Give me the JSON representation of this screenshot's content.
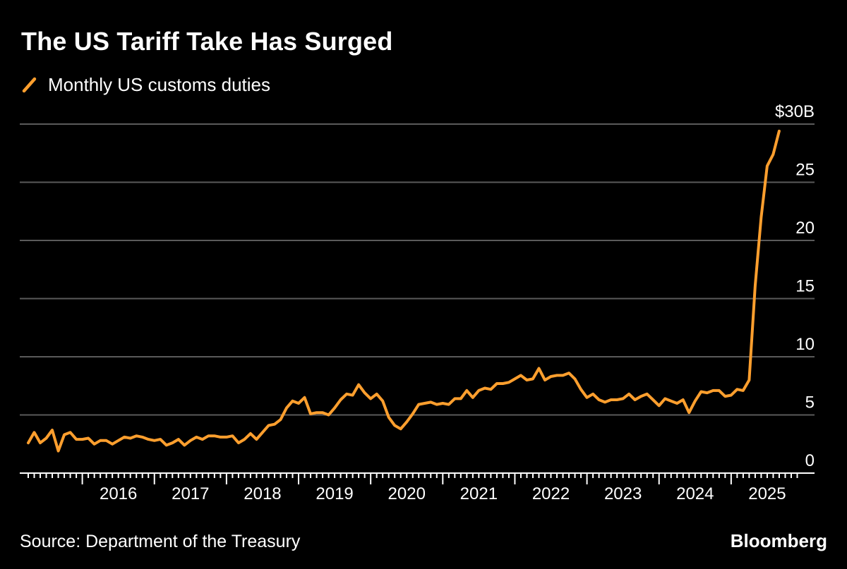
{
  "title": "The US Tariff Take Has Surged",
  "source": "Source: Department of the Treasury",
  "brand": "Bloomberg",
  "colors": {
    "series": "#FF9F2E",
    "grid": "#5a5a5a",
    "axis": "#ffffff",
    "background": "#000000"
  },
  "chart_data": {
    "type": "line",
    "title": "The US Tariff Take Has Surged",
    "xlabel": "",
    "ylabel": "",
    "ylim": [
      0,
      30
    ],
    "xlim": [
      2015.25,
      2026.0
    ],
    "yticks": [
      0,
      5,
      10,
      15,
      20,
      25,
      30
    ],
    "ytick_labels": [
      "0",
      "5",
      "10",
      "15",
      "20",
      "25",
      "$30B"
    ],
    "xticks": [
      2016,
      2017,
      2018,
      2019,
      2020,
      2021,
      2022,
      2023,
      2024,
      2025
    ],
    "xtick_labels": [
      "2016",
      "2017",
      "2018",
      "2019",
      "2020",
      "2021",
      "2022",
      "2023",
      "2024",
      "2025"
    ],
    "grid": true,
    "legend_position": "top-left",
    "series": [
      {
        "name": "Monthly US customs duties",
        "x_start": 2015.25,
        "step": 0.08333,
        "values": [
          2.6,
          3.5,
          2.6,
          3.0,
          3.7,
          1.9,
          3.3,
          3.5,
          2.9,
          2.9,
          3.0,
          2.5,
          2.8,
          2.8,
          2.5,
          2.8,
          3.1,
          3.0,
          3.2,
          3.1,
          2.9,
          2.8,
          2.9,
          2.4,
          2.6,
          2.9,
          2.4,
          2.8,
          3.1,
          2.9,
          3.2,
          3.2,
          3.1,
          3.1,
          3.2,
          2.6,
          2.9,
          3.4,
          2.9,
          3.5,
          4.1,
          4.2,
          4.6,
          5.6,
          6.2,
          6.0,
          6.5,
          5.1,
          5.2,
          5.2,
          5.0,
          5.6,
          6.3,
          6.8,
          6.7,
          7.6,
          6.9,
          6.4,
          6.8,
          6.2,
          4.8,
          4.1,
          3.8,
          4.4,
          5.1,
          5.9,
          6.0,
          6.1,
          5.9,
          6.0,
          5.9,
          6.4,
          6.4,
          7.1,
          6.5,
          7.1,
          7.3,
          7.2,
          7.7,
          7.7,
          7.8,
          8.1,
          8.4,
          8.0,
          8.1,
          9.0,
          8.0,
          8.3,
          8.4,
          8.4,
          8.6,
          8.1,
          7.2,
          6.5,
          6.8,
          6.3,
          6.1,
          6.3,
          6.3,
          6.4,
          6.8,
          6.3,
          6.6,
          6.8,
          6.3,
          5.8,
          6.4,
          6.2,
          6.0,
          6.3,
          5.2,
          6.2,
          7.0,
          6.9,
          7.1,
          7.1,
          6.6,
          6.7,
          7.2,
          7.1,
          8.0,
          16.1,
          22.0,
          26.4,
          27.4,
          29.4
        ]
      }
    ]
  }
}
